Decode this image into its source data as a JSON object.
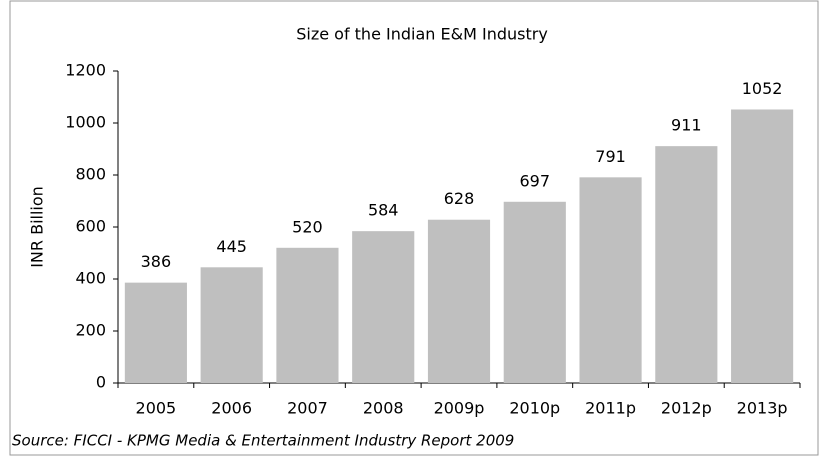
{
  "chart_data": {
    "type": "bar",
    "title": "Size of the Indian E&M Industry",
    "y_label": "INR Billion",
    "source": "Source: FICCI - KPMG Media & Entertainment Industry Report 2009",
    "categories": [
      "2005",
      "2006",
      "2007",
      "2008",
      "2009p",
      "2010p",
      "2011p",
      "2012p",
      "2013p"
    ],
    "values": [
      386,
      445,
      520,
      584,
      628,
      697,
      791,
      911,
      1052
    ],
    "color": "#bfbfbf",
    "ylim": [
      0,
      1200
    ],
    "yticks": [
      0,
      200,
      400,
      600,
      800,
      1000,
      1200
    ],
    "grid": false
  }
}
